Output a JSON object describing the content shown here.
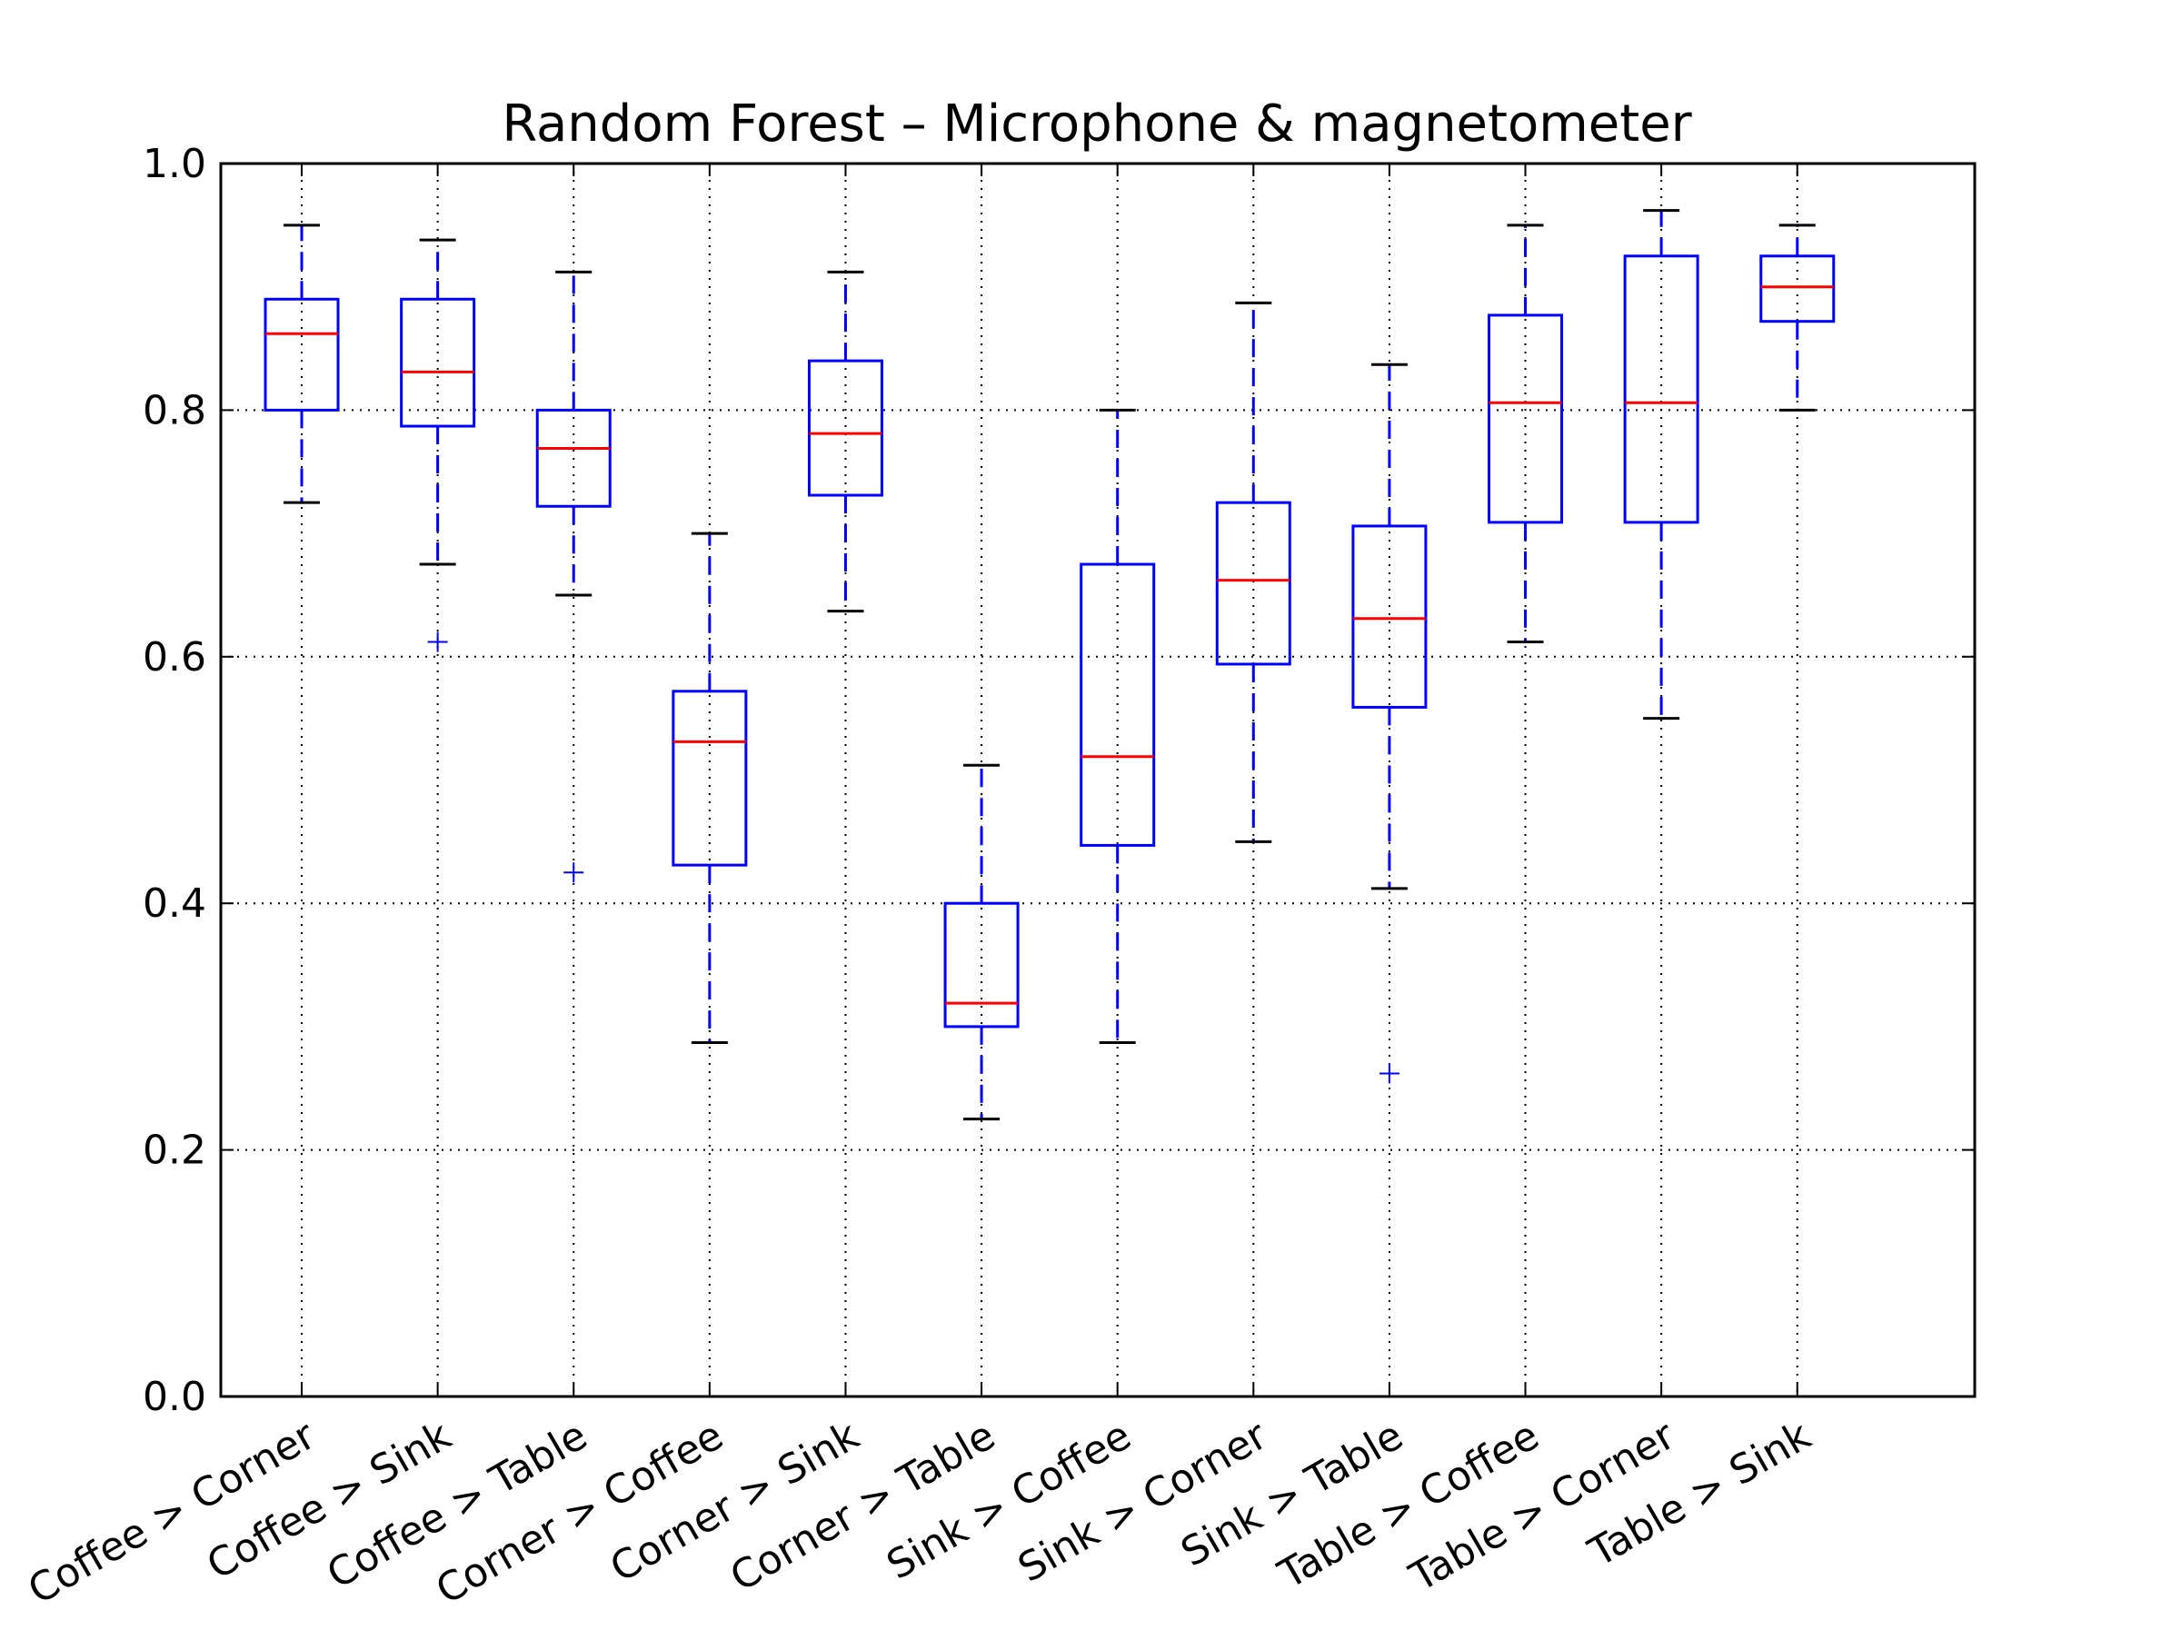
{
  "chart_data": {
    "type": "box",
    "title": "Random Forest – Microphone & magnetometer",
    "xlabel": "",
    "ylabel": "",
    "ylim": [
      0.0,
      1.0
    ],
    "yticks": [
      "0.0",
      "0.2",
      "0.4",
      "0.6",
      "0.8",
      "1.0"
    ],
    "grid": true,
    "categories": [
      "Coffee > Corner",
      "Coffee > Sink",
      "Coffee > Table",
      "Corner > Coffee",
      "Corner > Sink",
      "Corner > Table",
      "Sink > Coffee",
      "Sink > Corner",
      "Sink > Table",
      "Table > Coffee",
      "Table > Corner",
      "Table > Sink"
    ],
    "boxes": [
      {
        "whisker_low": 0.725,
        "q1": 0.8,
        "median": 0.862,
        "q3": 0.89,
        "whisker_high": 0.95,
        "outliers": []
      },
      {
        "whisker_low": 0.675,
        "q1": 0.787,
        "median": 0.831,
        "q3": 0.89,
        "whisker_high": 0.938,
        "outliers": [
          0.612
        ]
      },
      {
        "whisker_low": 0.65,
        "q1": 0.722,
        "median": 0.769,
        "q3": 0.8,
        "whisker_high": 0.912,
        "outliers": [
          0.425
        ]
      },
      {
        "whisker_low": 0.287,
        "q1": 0.431,
        "median": 0.531,
        "q3": 0.572,
        "whisker_high": 0.7,
        "outliers": []
      },
      {
        "whisker_low": 0.637,
        "q1": 0.731,
        "median": 0.781,
        "q3": 0.84,
        "whisker_high": 0.912,
        "outliers": []
      },
      {
        "whisker_low": 0.225,
        "q1": 0.3,
        "median": 0.319,
        "q3": 0.4,
        "whisker_high": 0.512,
        "outliers": []
      },
      {
        "whisker_low": 0.287,
        "q1": 0.447,
        "median": 0.519,
        "q3": 0.675,
        "whisker_high": 0.8,
        "outliers": []
      },
      {
        "whisker_low": 0.45,
        "q1": 0.594,
        "median": 0.662,
        "q3": 0.725,
        "whisker_high": 0.887,
        "outliers": []
      },
      {
        "whisker_low": 0.412,
        "q1": 0.559,
        "median": 0.631,
        "q3": 0.706,
        "whisker_high": 0.837,
        "outliers": [
          0.262
        ]
      },
      {
        "whisker_low": 0.612,
        "q1": 0.709,
        "median": 0.806,
        "q3": 0.877,
        "whisker_high": 0.95,
        "outliers": []
      },
      {
        "whisker_low": 0.55,
        "q1": 0.709,
        "median": 0.806,
        "q3": 0.925,
        "whisker_high": 0.962,
        "outliers": []
      },
      {
        "whisker_low": 0.8,
        "q1": 0.872,
        "median": 0.9,
        "q3": 0.925,
        "whisker_high": 0.95,
        "outliers": []
      }
    ],
    "colors": {
      "box": "#0000ff",
      "median": "#ff0000",
      "whisker": "#0000ff",
      "cap": "#000000",
      "outlier": "#0000ff",
      "grid": "#000000",
      "axes": "#000000"
    }
  }
}
